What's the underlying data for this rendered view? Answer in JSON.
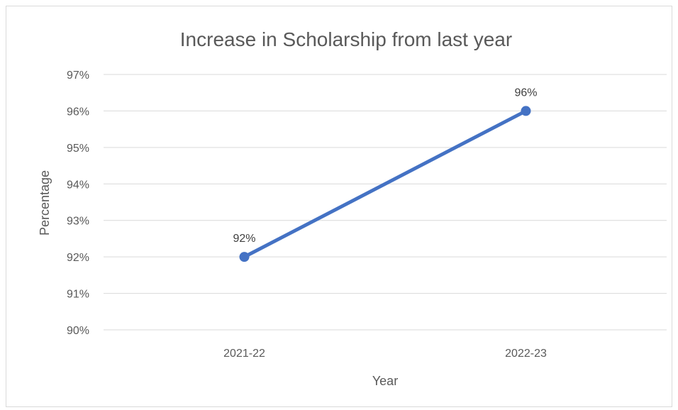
{
  "chart_data": {
    "type": "line",
    "title": "Increase in Scholarship from last year",
    "xlabel": "Year",
    "ylabel": "Percentage",
    "categories": [
      "2021-22",
      "2022-23"
    ],
    "series": [
      {
        "values": [
          92,
          96
        ],
        "data_labels": [
          "92%",
          "96%"
        ],
        "color": "#4472c4"
      }
    ],
    "ylim": [
      90,
      97
    ],
    "y_ticks": [
      90,
      91,
      92,
      93,
      94,
      95,
      96,
      97
    ],
    "y_tick_labels": [
      "90%",
      "91%",
      "92%",
      "93%",
      "94%",
      "95%",
      "96%",
      "97%"
    ],
    "grid": true,
    "legend": "none",
    "gridline_color": "#d9d9d9",
    "text_color": "#595959",
    "title_color": "#595959"
  }
}
